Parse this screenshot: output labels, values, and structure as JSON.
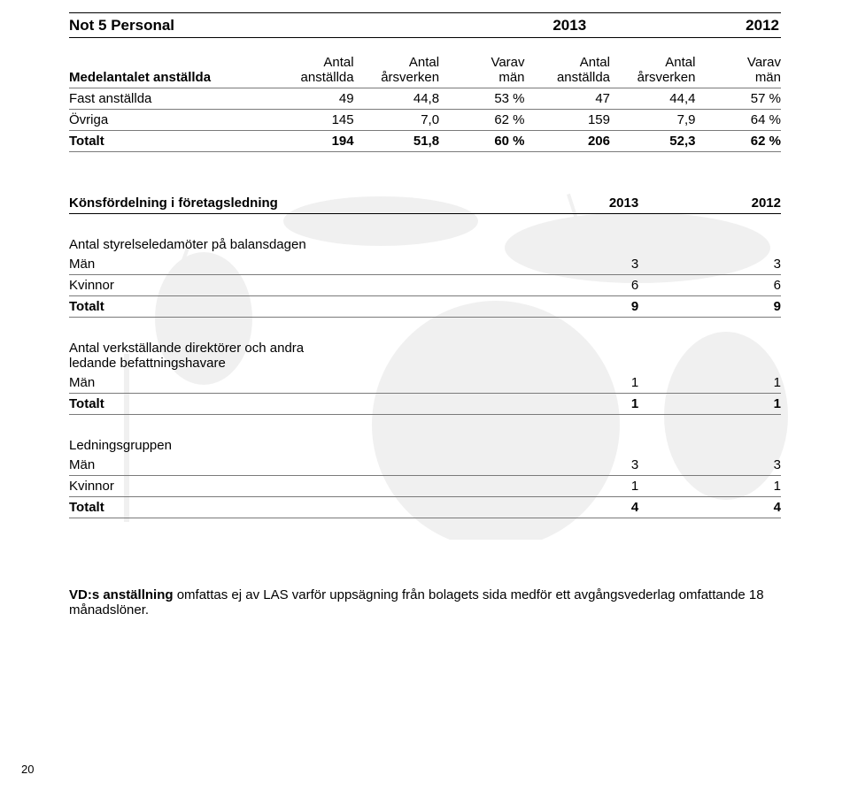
{
  "title": {
    "label": "Not 5  Personal",
    "year1": "2013",
    "year2": "2012"
  },
  "table1": {
    "header_label": "Medelantalet anställda",
    "cols_2013": {
      "a": "Antal anställda",
      "b": "Antal årsverken",
      "c": "Varav män"
    },
    "cols_2012": {
      "a": "Antal anställda",
      "b": "Antal årsverken",
      "c": "Varav män"
    },
    "rows": [
      {
        "label": "Fast anställda",
        "v": [
          "49",
          "44,8",
          "53 %",
          "47",
          "44,4",
          "57 %"
        ],
        "bold": false
      },
      {
        "label": "Övriga",
        "v": [
          "145",
          "7,0",
          "62 %",
          "159",
          "7,9",
          "64 %"
        ],
        "bold": false
      },
      {
        "label": "Totalt",
        "v": [
          "194",
          "51,8",
          "60 %",
          "206",
          "52,3",
          "62 %"
        ],
        "bold": true
      }
    ]
  },
  "table2": {
    "title": "Könsfördelning i företagsledning",
    "year1": "2013",
    "year2": "2012"
  },
  "section_a": {
    "title": "Antal styrelseledamöter på balansdagen",
    "rows": [
      {
        "label": "Män",
        "v1": "3",
        "v2": "3",
        "bold": false
      },
      {
        "label": "Kvinnor",
        "v1": "6",
        "v2": "6",
        "bold": false
      },
      {
        "label": "Totalt",
        "v1": "9",
        "v2": "9",
        "bold": true
      }
    ]
  },
  "section_b": {
    "title_line1": "Antal verkställande direktörer och andra",
    "title_line2": "ledande befattningshavare",
    "rows": [
      {
        "label": "Män",
        "v1": "1",
        "v2": "1",
        "bold": false
      },
      {
        "label": "Totalt",
        "v1": "1",
        "v2": "1",
        "bold": true
      }
    ]
  },
  "section_c": {
    "title": "Ledningsgruppen",
    "rows": [
      {
        "label": "Män",
        "v1": "3",
        "v2": "3",
        "bold": false
      },
      {
        "label": "Kvinnor",
        "v1": "1",
        "v2": "1",
        "bold": false
      },
      {
        "label": "Totalt",
        "v1": "4",
        "v2": "4",
        "bold": true
      }
    ]
  },
  "footnote": {
    "lead": "VD:s anställning",
    "rest": " omfattas ej av LAS varför uppsägning från bolagets sida medför ett avgångsvederlag omfattande 18 månadslöner."
  },
  "page_number": "20"
}
